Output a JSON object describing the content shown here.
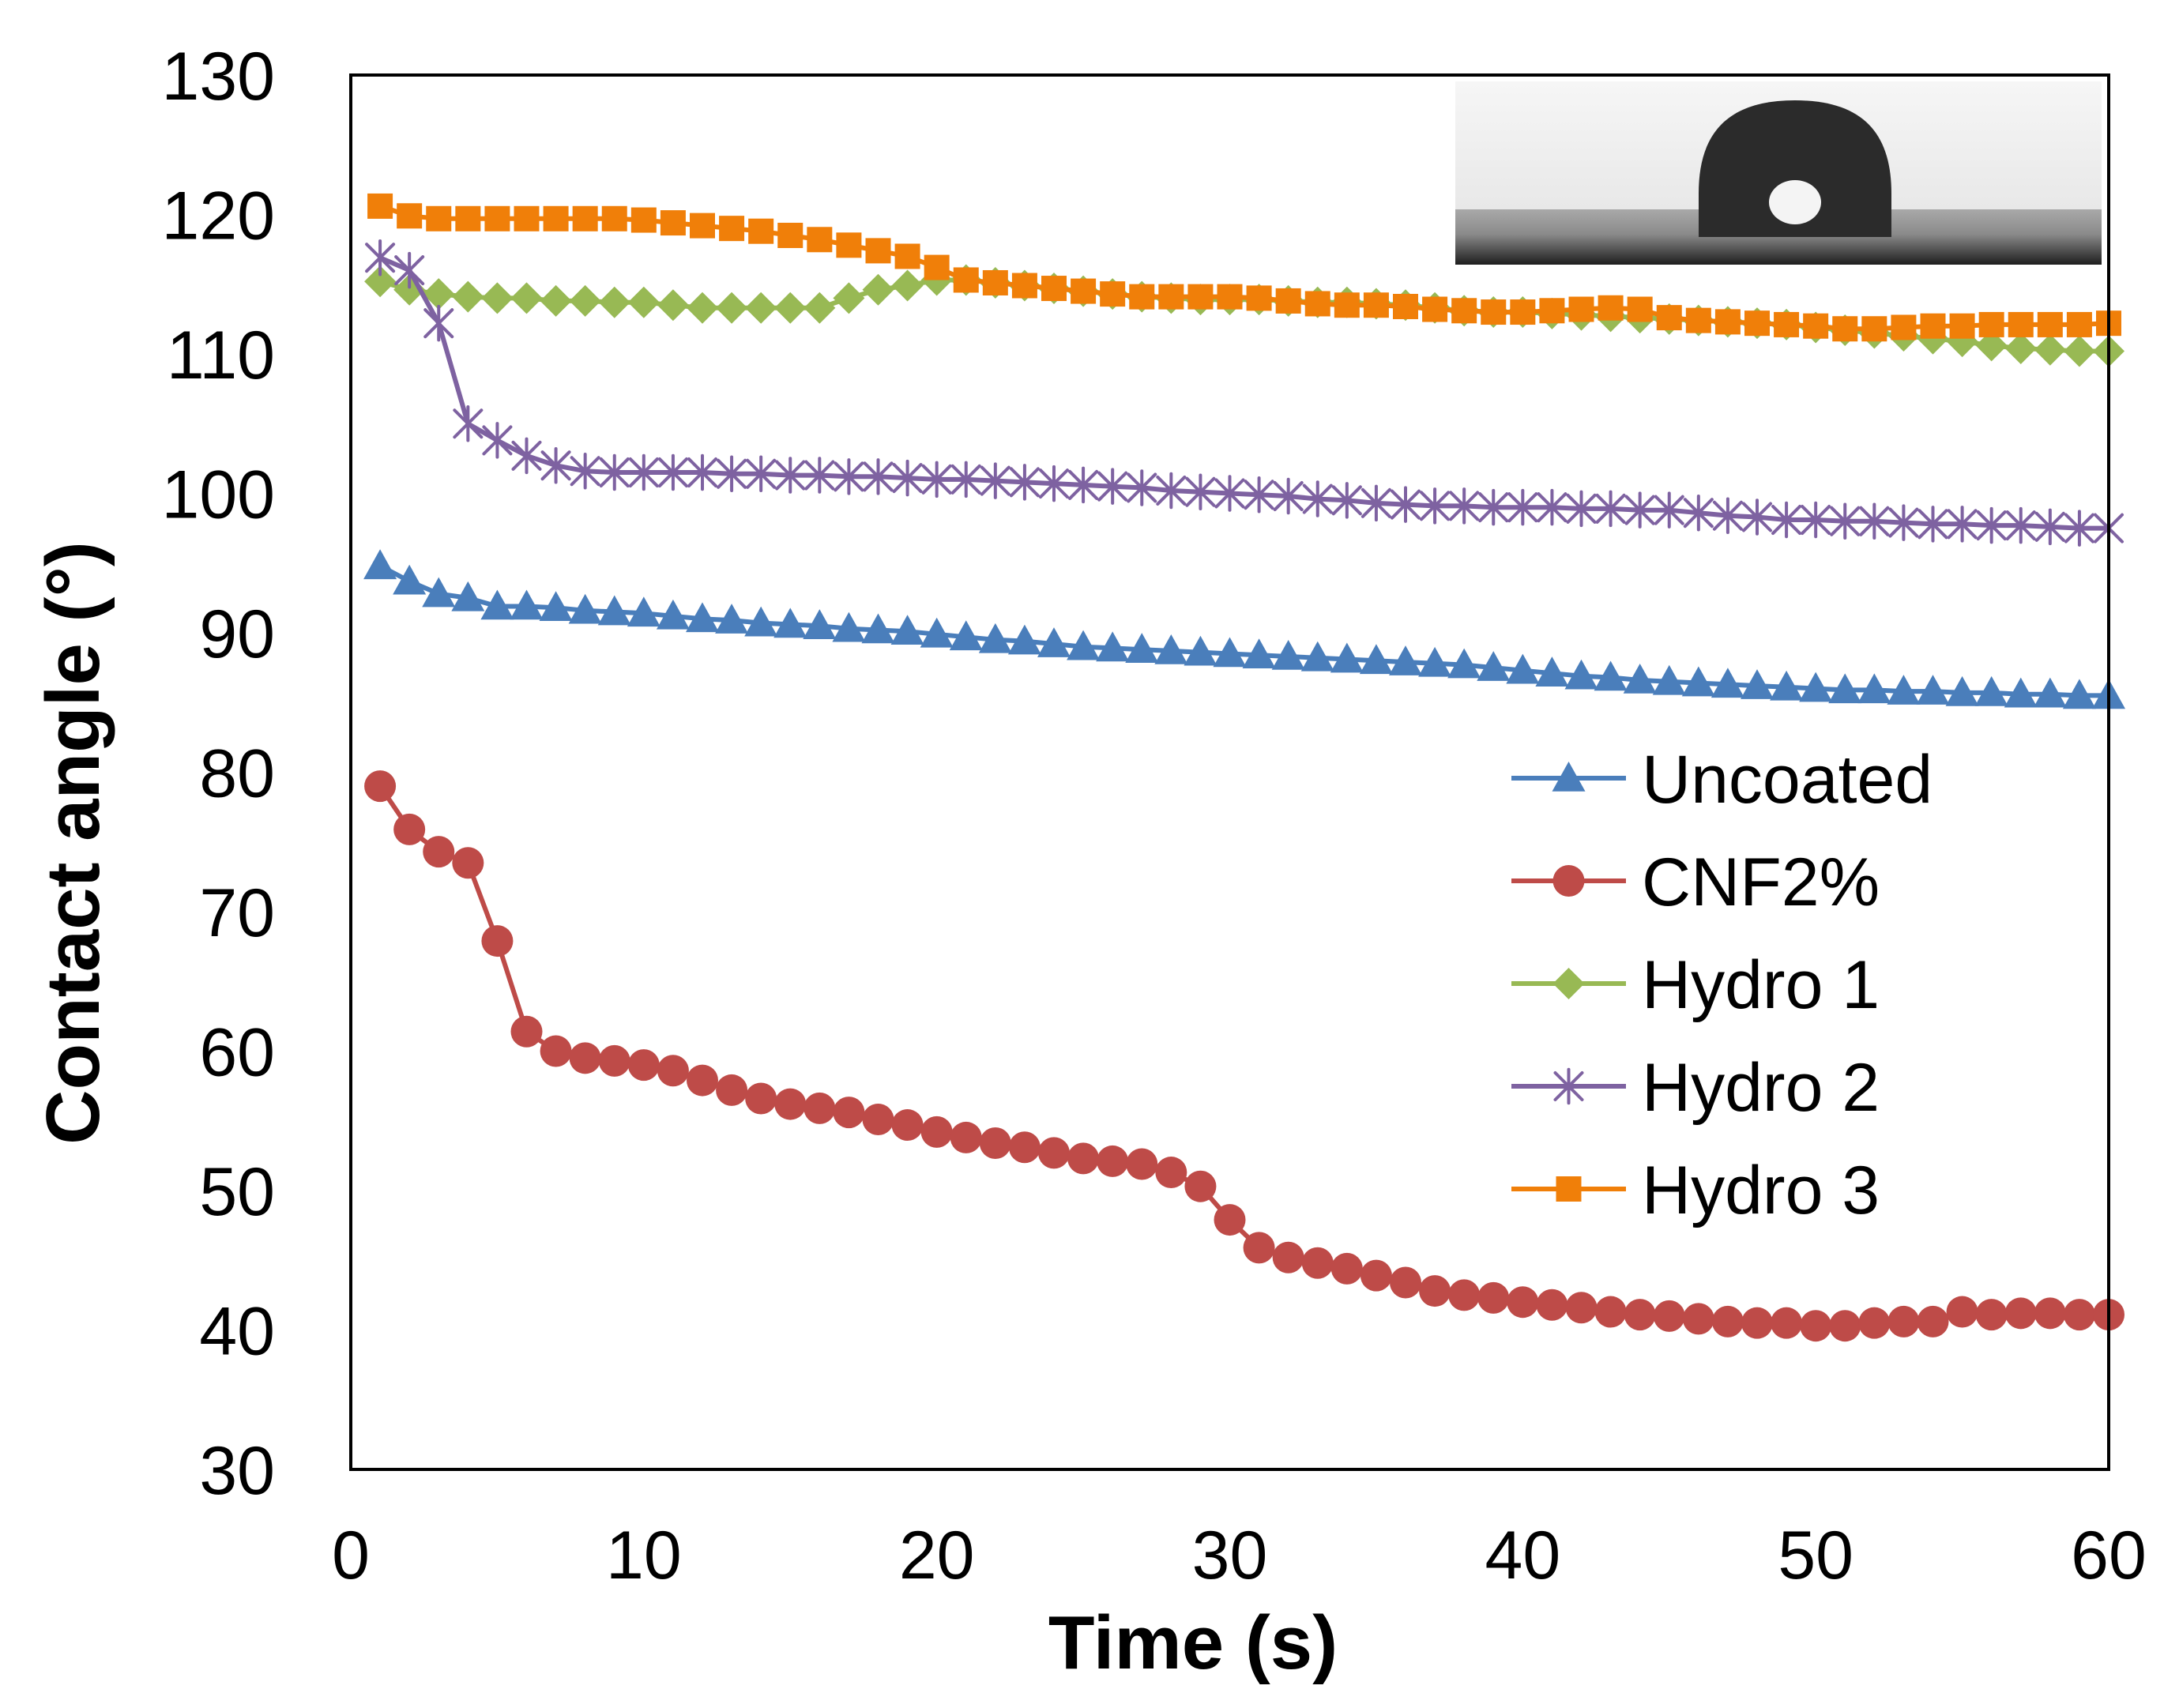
{
  "chart_data": {
    "type": "line",
    "title": "",
    "xlabel": "Time (s)",
    "ylabel": "Contact angle (°)",
    "xlim": [
      0,
      60
    ],
    "ylim": [
      30,
      130
    ],
    "xticks": [
      0,
      10,
      20,
      30,
      40,
      50,
      60
    ],
    "yticks": [
      30,
      40,
      50,
      60,
      70,
      80,
      90,
      100,
      110,
      120,
      130
    ],
    "grid": false,
    "legend_position": "center-right",
    "inset": "water droplet photograph (top-right)",
    "x": [
      1,
      2,
      3,
      4,
      5,
      6,
      7,
      8,
      9,
      10,
      11,
      12,
      13,
      14,
      15,
      16,
      17,
      18,
      19,
      20,
      21,
      22,
      23,
      24,
      25,
      26,
      27,
      28,
      29,
      30,
      31,
      32,
      33,
      34,
      35,
      36,
      37,
      38,
      39,
      40,
      41,
      42,
      43,
      44,
      45,
      46,
      47,
      48,
      49,
      50,
      51,
      52,
      53,
      54,
      55,
      56,
      57,
      58,
      59,
      60
    ],
    "series": [
      {
        "name": "Uncoated",
        "color": "#4a7ebb",
        "marker": "triangle",
        "values": [
          94.8,
          93.7,
          92.8,
          92.5,
          91.9,
          91.9,
          91.8,
          91.6,
          91.5,
          91.4,
          91.2,
          91.0,
          90.9,
          90.7,
          90.6,
          90.5,
          90.3,
          90.2,
          90.1,
          89.9,
          89.7,
          89.5,
          89.4,
          89.2,
          89.0,
          88.9,
          88.8,
          88.7,
          88.6,
          88.5,
          88.4,
          88.3,
          88.2,
          88.1,
          88.0,
          87.9,
          87.8,
          87.7,
          87.5,
          87.3,
          87.1,
          86.9,
          86.8,
          86.6,
          86.5,
          86.4,
          86.3,
          86.2,
          86.1,
          86.0,
          85.9,
          85.9,
          85.8,
          85.8,
          85.7,
          85.7,
          85.6,
          85.6,
          85.5,
          85.5
        ]
      },
      {
        "name": "CNF2%",
        "color": "#be4b48",
        "marker": "circle",
        "values": [
          79.0,
          75.9,
          74.3,
          73.5,
          67.9,
          61.4,
          60.0,
          59.5,
          59.3,
          59.0,
          58.6,
          57.9,
          57.2,
          56.6,
          56.2,
          55.9,
          55.6,
          55.1,
          54.7,
          54.2,
          53.8,
          53.4,
          53.1,
          52.7,
          52.3,
          52.1,
          51.9,
          51.3,
          50.3,
          47.9,
          45.9,
          45.2,
          44.8,
          44.4,
          43.9,
          43.4,
          42.8,
          42.5,
          42.3,
          42.0,
          41.8,
          41.6,
          41.3,
          41.1,
          41.0,
          40.8,
          40.6,
          40.5,
          40.5,
          40.3,
          40.3,
          40.5,
          40.6,
          40.6,
          41.3,
          41.1,
          41.2,
          41.2,
          41.1,
          41.1
        ]
      },
      {
        "name": "Hydro 1",
        "color": "#98b954",
        "marker": "diamond",
        "values": [
          115.2,
          114.6,
          114.3,
          114.1,
          114.0,
          114.0,
          113.8,
          113.8,
          113.7,
          113.7,
          113.5,
          113.3,
          113.3,
          113.3,
          113.3,
          113.3,
          114.0,
          114.6,
          114.9,
          115.3,
          115.3,
          115.1,
          114.9,
          114.7,
          114.5,
          114.3,
          114.1,
          114.0,
          113.9,
          113.9,
          113.9,
          113.8,
          113.7,
          113.7,
          113.6,
          113.5,
          113.3,
          113.1,
          113.0,
          113.0,
          112.9,
          112.8,
          112.7,
          112.6,
          112.5,
          112.4,
          112.3,
          112.2,
          112.1,
          111.9,
          111.7,
          111.5,
          111.3,
          111.1,
          110.9,
          110.6,
          110.4,
          110.3,
          110.2,
          110.2
        ]
      },
      {
        "name": "Hydro 2",
        "color": "#7e62a1",
        "marker": "asterisk",
        "values": [
          116.9,
          116.0,
          112.2,
          105.0,
          103.8,
          102.7,
          102.0,
          101.6,
          101.5,
          101.5,
          101.5,
          101.5,
          101.4,
          101.4,
          101.3,
          101.3,
          101.2,
          101.2,
          101.1,
          101.0,
          101.0,
          100.9,
          100.8,
          100.7,
          100.6,
          100.5,
          100.4,
          100.2,
          100.1,
          100.0,
          99.9,
          99.8,
          99.6,
          99.5,
          99.3,
          99.2,
          99.1,
          99.1,
          99.0,
          99.0,
          99.0,
          98.9,
          98.9,
          98.8,
          98.8,
          98.6,
          98.4,
          98.3,
          98.1,
          98.1,
          98.0,
          98.0,
          97.9,
          97.8,
          97.8,
          97.7,
          97.7,
          97.6,
          97.5,
          97.5
        ]
      },
      {
        "name": "Hydro 3",
        "color": "#f07f09",
        "marker": "square",
        "values": [
          120.6,
          119.9,
          119.7,
          119.7,
          119.7,
          119.7,
          119.7,
          119.7,
          119.7,
          119.6,
          119.4,
          119.2,
          119.0,
          118.8,
          118.5,
          118.2,
          117.8,
          117.4,
          117.0,
          116.2,
          115.3,
          115.1,
          114.9,
          114.7,
          114.5,
          114.3,
          114.1,
          114.1,
          114.1,
          114.1,
          114.0,
          113.8,
          113.6,
          113.5,
          113.5,
          113.4,
          113.2,
          113.1,
          113.0,
          113.0,
          113.1,
          113.2,
          113.3,
          113.2,
          112.6,
          112.4,
          112.3,
          112.2,
          112.1,
          112.0,
          111.8,
          111.8,
          111.9,
          112.0,
          112.0,
          112.1,
          112.1,
          112.1,
          112.1,
          112.2
        ]
      }
    ]
  }
}
